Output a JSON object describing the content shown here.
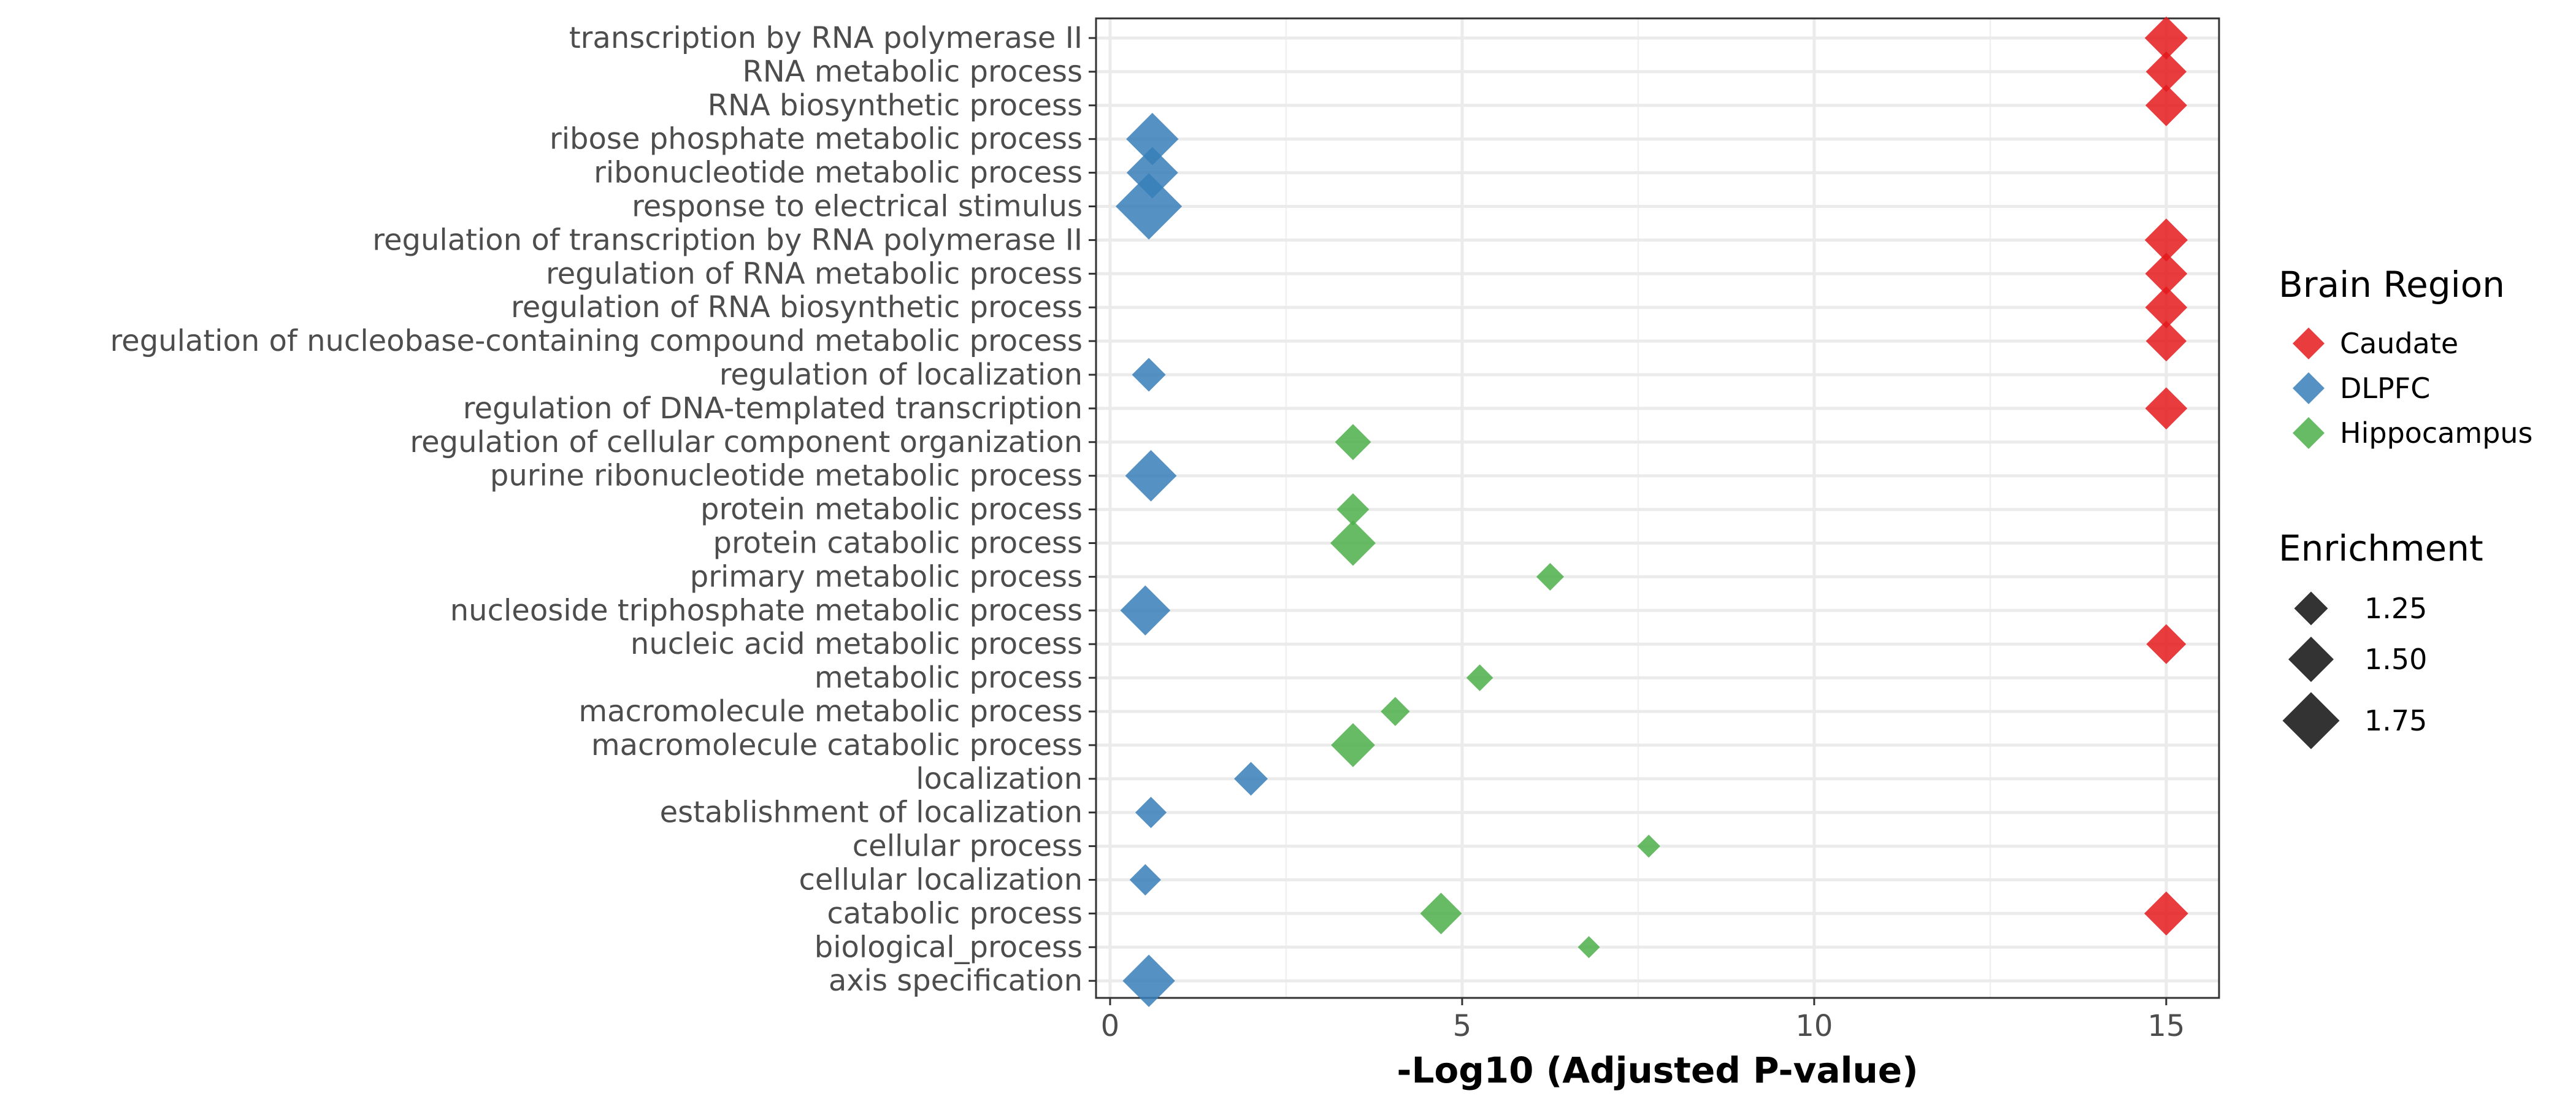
{
  "chart_data": {
    "type": "scatter",
    "title": "",
    "xlabel": "-Log10 (Adjusted P-value)",
    "ylabel": "",
    "xlim": [
      -0.2,
      15.75
    ],
    "xticks": [
      0,
      5,
      10,
      15
    ],
    "grid": true,
    "legend_placement": "right",
    "categories": [
      "transcription by RNA polymerase II",
      "RNA metabolic process",
      "RNA biosynthetic process",
      "ribose phosphate metabolic process",
      "ribonucleotide metabolic process",
      "response to electrical stimulus",
      "regulation of transcription by RNA polymerase II",
      "regulation of RNA metabolic process",
      "regulation of RNA biosynthetic process",
      "regulation of nucleobase-containing compound metabolic process",
      "regulation of localization",
      "regulation of DNA-templated transcription",
      "regulation of cellular component organization",
      "purine ribonucleotide metabolic process",
      "protein metabolic process",
      "protein catabolic process",
      "primary metabolic process",
      "nucleoside triphosphate metabolic process",
      "nucleic acid metabolic process",
      "metabolic process",
      "macromolecule metabolic process",
      "macromolecule catabolic process",
      "localization",
      "establishment of localization",
      "cellular process",
      "cellular localization",
      "catabolic process",
      "biological_process",
      "axis specification"
    ],
    "colors": {
      "Caudate": "#e41a1c",
      "DLPFC": "#377eb8",
      "Hippocampus": "#4daf4a"
    },
    "series": [
      {
        "name": "Caudate",
        "points": [
          {
            "term": "transcription by RNA polymerase II",
            "x": 15,
            "enrichment": 1.45
          },
          {
            "term": "RNA metabolic process",
            "x": 15,
            "enrichment": 1.4
          },
          {
            "term": "RNA biosynthetic process",
            "x": 15,
            "enrichment": 1.42
          },
          {
            "term": "regulation of transcription by RNA polymerase II",
            "x": 15,
            "enrichment": 1.45
          },
          {
            "term": "regulation of RNA metabolic process",
            "x": 15,
            "enrichment": 1.43
          },
          {
            "term": "regulation of RNA biosynthetic process",
            "x": 15,
            "enrichment": 1.43
          },
          {
            "term": "regulation of nucleobase-containing compound metabolic process",
            "x": 15,
            "enrichment": 1.4
          },
          {
            "term": "regulation of DNA-templated transcription",
            "x": 15,
            "enrichment": 1.43
          },
          {
            "term": "nucleic acid metabolic process",
            "x": 15,
            "enrichment": 1.38
          },
          {
            "term": "catabolic process",
            "x": 15,
            "enrichment": 1.47
          }
        ]
      },
      {
        "name": "DLPFC",
        "points": [
          {
            "term": "ribose phosphate metabolic process",
            "x": 0.6,
            "enrichment": 1.65
          },
          {
            "term": "ribonucleotide metabolic process",
            "x": 0.6,
            "enrichment": 1.63
          },
          {
            "term": "response to electrical stimulus",
            "x": 0.55,
            "enrichment": 1.95
          },
          {
            "term": "regulation of localization",
            "x": 0.55,
            "enrichment": 1.25
          },
          {
            "term": "purine ribonucleotide metabolic process",
            "x": 0.58,
            "enrichment": 1.63
          },
          {
            "term": "nucleoside triphosphate metabolic process",
            "x": 0.5,
            "enrichment": 1.6
          },
          {
            "term": "localization",
            "x": 2.0,
            "enrichment": 1.25
          },
          {
            "term": "establishment of localization",
            "x": 0.58,
            "enrichment": 1.2
          },
          {
            "term": "cellular localization",
            "x": 0.5,
            "enrichment": 1.2
          },
          {
            "term": "axis specification",
            "x": 0.55,
            "enrichment": 1.65
          }
        ]
      },
      {
        "name": "Hippocampus",
        "points": [
          {
            "term": "regulation of cellular component organization",
            "x": 3.45,
            "enrichment": 1.3
          },
          {
            "term": "protein metabolic process",
            "x": 3.45,
            "enrichment": 1.22
          },
          {
            "term": "protein catabolic process",
            "x": 3.45,
            "enrichment": 1.5
          },
          {
            "term": "primary metabolic process",
            "x": 6.25,
            "enrichment": 1.12
          },
          {
            "term": "metabolic process",
            "x": 5.25,
            "enrichment": 1.1
          },
          {
            "term": "macromolecule metabolic process",
            "x": 4.05,
            "enrichment": 1.15
          },
          {
            "term": "macromolecule catabolic process",
            "x": 3.45,
            "enrichment": 1.47
          },
          {
            "term": "cellular process",
            "x": 7.65,
            "enrichment": 1.02
          },
          {
            "term": "catabolic process",
            "x": 4.7,
            "enrichment": 1.42
          },
          {
            "term": "biological_process",
            "x": 6.8,
            "enrichment": 1.0
          }
        ]
      }
    ],
    "legend": {
      "color_title": "Brain Region",
      "color_items": [
        "Caudate",
        "DLPFC",
        "Hippocampus"
      ],
      "size_title": "Enrichment",
      "size_items": [
        {
          "label": "1.25",
          "value": 1.25
        },
        {
          "label": "1.50",
          "value": 1.5
        },
        {
          "label": "1.75",
          "value": 1.75
        }
      ]
    }
  }
}
